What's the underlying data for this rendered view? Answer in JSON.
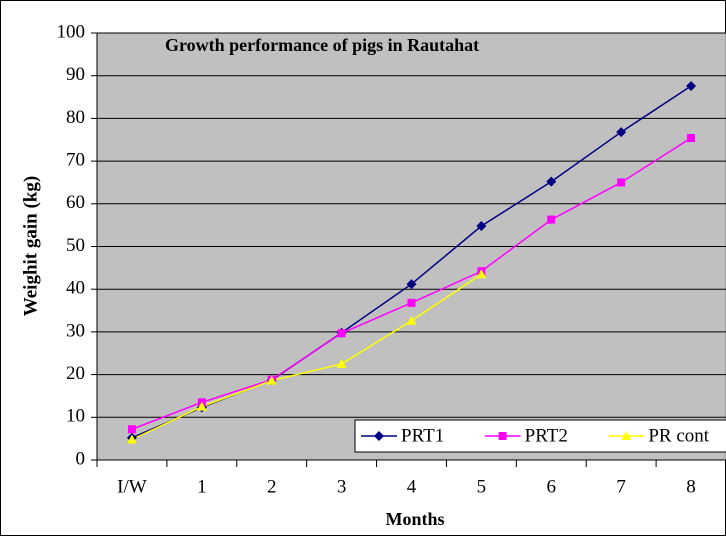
{
  "chart_data": {
    "type": "line",
    "title": "Growth performance of pigs in Rautahat",
    "x_label": "Months",
    "y_label": "Weighit gain (kg)",
    "categories": [
      "I/W",
      "1",
      "2",
      "3",
      "4",
      "5",
      "6",
      "7",
      "8"
    ],
    "series": [
      {
        "name": "PRT1",
        "color": "#000080",
        "marker": "diamond",
        "values": [
          5.2,
          12.3,
          18.7,
          29.8,
          41.2,
          54.8,
          65.2,
          76.8,
          87.6
        ]
      },
      {
        "name": "PRT2",
        "color": "#ff00ff",
        "marker": "square",
        "values": [
          7.2,
          13.5,
          18.8,
          29.7,
          36.8,
          44.2,
          56.3,
          65,
          75.4
        ]
      },
      {
        "name": "PR cont",
        "color": "#ffff00",
        "marker": "triangle",
        "values": [
          4.8,
          12.5,
          18.6,
          22.5,
          32.6,
          43.5,
          null,
          null,
          null
        ]
      }
    ],
    "ylim": [
      0,
      100
    ],
    "yticks": [
      0,
      10,
      20,
      30,
      40,
      50,
      60,
      70,
      80,
      90,
      100
    ],
    "grid": true,
    "legend": "bottom-right"
  }
}
